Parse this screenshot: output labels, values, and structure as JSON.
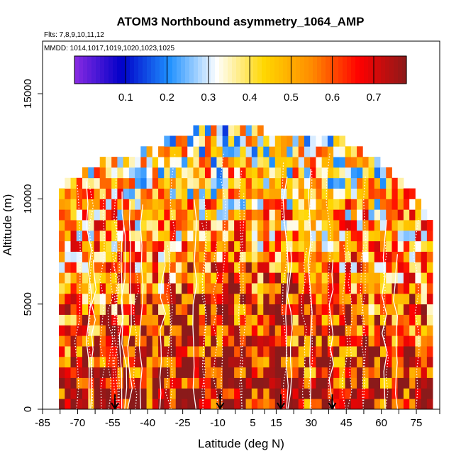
{
  "chart_data": {
    "type": "heatmap",
    "title": "ATOM3 Northbound asymmetry_1064_AMP",
    "subtitle_flights": "Flts: 7,8,9,10,11,12",
    "subtitle_dates": "MMDD: 1014,1017,1019,1020,1023,1025",
    "xlabel": "Latitude (deg N)",
    "ylabel": "Altitude (m)",
    "xlim": [
      -85,
      85
    ],
    "ylim": [
      0,
      17500
    ],
    "x_ticks": [
      -85,
      -70,
      -55,
      -40,
      -25,
      -10,
      5,
      15,
      30,
      45,
      60,
      75
    ],
    "y_ticks": [
      0,
      5000,
      10000,
      15000
    ],
    "colorbar": {
      "range": [
        0,
        0.7
      ],
      "ticks": [
        0.1,
        0.2,
        0.3,
        0.4,
        0.5,
        0.6,
        0.7
      ],
      "colors": [
        "#8a2be2",
        "#0000c8",
        "#1e90ff",
        "#ffffff",
        "#ffd700",
        "#ff8c00",
        "#ff0000",
        "#8b1a1a"
      ]
    },
    "arrows_lat": [
      -54,
      -9,
      17,
      39
    ],
    "data_extent": {
      "lat_min": -78,
      "lat_max": 80,
      "alt_max": 13300,
      "bins_latitude_deg": 2.5,
      "bins_altitude_m": 500
    },
    "data_profile": [
      {
        "lat": -75,
        "top_alt": 10500
      },
      {
        "lat": -60,
        "top_alt": 11500
      },
      {
        "lat": -45,
        "top_alt": 12000
      },
      {
        "lat": -25,
        "top_alt": 12900
      },
      {
        "lat": -10,
        "top_alt": 13300
      },
      {
        "lat": 10,
        "top_alt": 13000
      },
      {
        "lat": 30,
        "top_alt": 12900
      },
      {
        "lat": 45,
        "top_alt": 12500
      },
      {
        "lat": 60,
        "top_alt": 11500
      },
      {
        "lat": 75,
        "top_alt": 10000
      },
      {
        "lat": 80,
        "top_alt": 9000
      }
    ]
  }
}
